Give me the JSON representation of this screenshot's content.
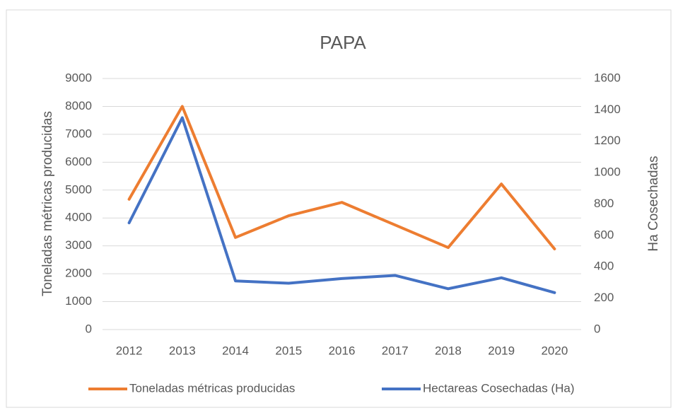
{
  "chart_data": {
    "type": "line",
    "title": "PAPA",
    "y_label": "Toneladas métricas producidas",
    "y2_label": "Ha Cosechadas",
    "categories": [
      "2012",
      "2013",
      "2014",
      "2015",
      "2016",
      "2017",
      "2018",
      "2019",
      "2020"
    ],
    "series": [
      {
        "name": "Toneladas métricas producidas",
        "color": "#ed7d31",
        "values": [
          4670,
          8000,
          3300,
          4080,
          4560,
          3750,
          2940,
          5220,
          2890
        ]
      },
      {
        "name": "Hectareas Cosechadas (Ha)",
        "color": "#4472c4",
        "axis": "y2",
        "values": [
          680,
          1350,
          310,
          295,
          325,
          345,
          260,
          330,
          235
        ]
      }
    ],
    "ylim": [
      0,
      9000
    ],
    "yticks": [
      0,
      1000,
      2000,
      3000,
      4000,
      5000,
      6000,
      7000,
      8000,
      9000
    ],
    "y2lim": [
      0,
      1600
    ],
    "y2ticks": [
      0,
      200,
      400,
      600,
      800,
      1000,
      1200,
      1400,
      1600
    ],
    "grid": true,
    "legend": "bottom"
  }
}
